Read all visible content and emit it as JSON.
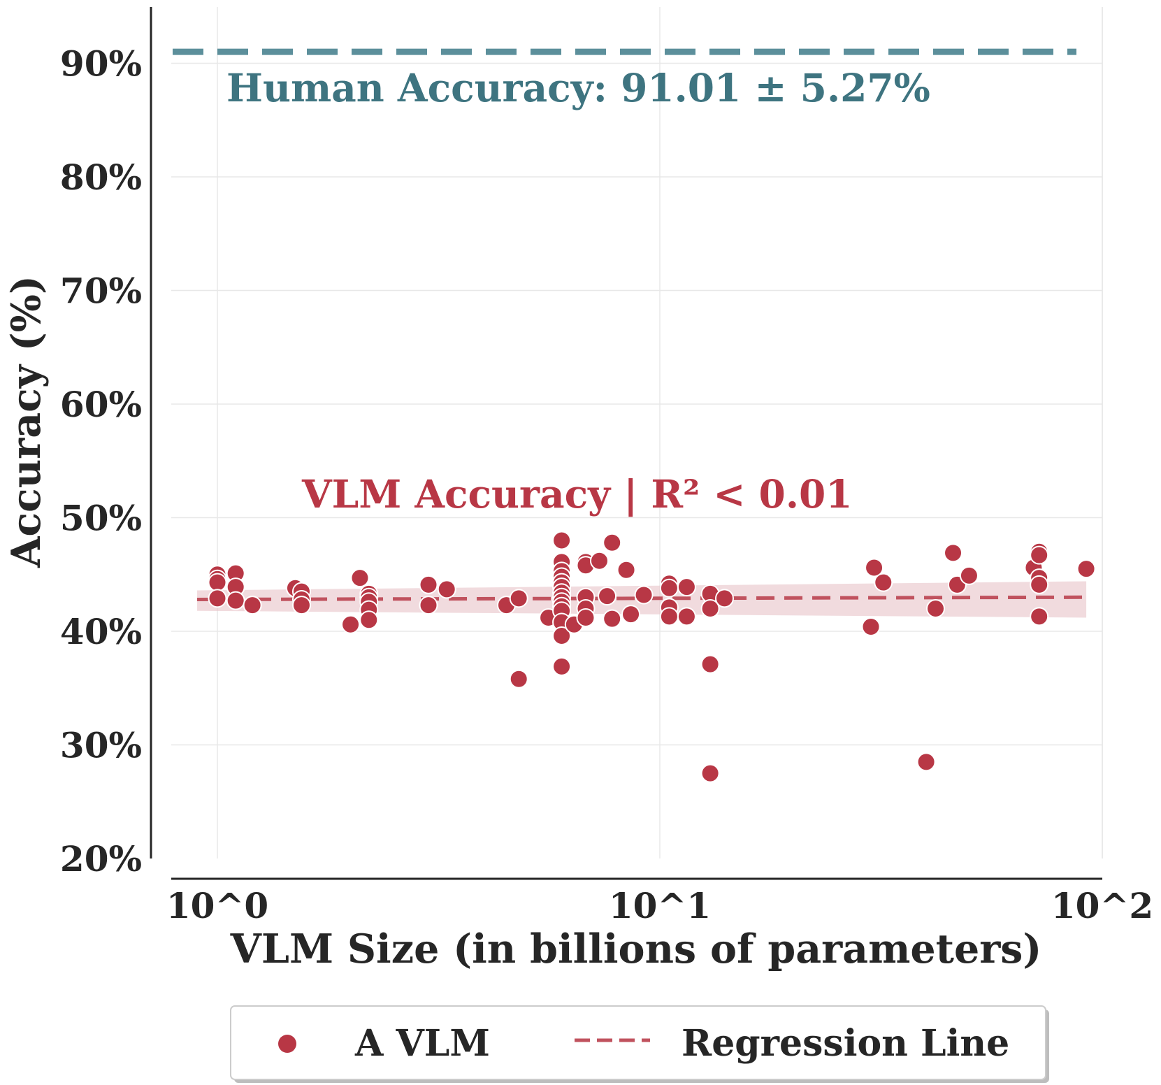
{
  "chart_data": {
    "type": "scatter",
    "title": "",
    "xlabel": "VLM Size (in billions of parameters)",
    "ylabel": "Accuracy (%)",
    "xscale": "log",
    "xlim": [
      0.88,
      100
    ],
    "ylim": [
      20,
      95
    ],
    "grid": true,
    "x_ticks": [
      1,
      10,
      100
    ],
    "x_tick_labels": [
      "10^0",
      "10^1",
      "10^2"
    ],
    "y_ticks": [
      20,
      30,
      40,
      50,
      60,
      70,
      80,
      90
    ],
    "y_tick_labels": [
      "20%",
      "30%",
      "40%",
      "50%",
      "60%",
      "70%",
      "80%",
      "90%"
    ],
    "human_accuracy": {
      "value": 91.01,
      "std": 5.27,
      "label": "Human Accuracy: 91.01 ± 5.27%",
      "color": "#5c8f9b",
      "text_color": "#3e7480"
    },
    "vlm_annotation": {
      "label": "VLM Accuracy | R² < 0.01",
      "color": "#b83745"
    },
    "regression": {
      "x_range": [
        0.9,
        92
      ],
      "y_start": 42.8,
      "y_end": 43.0,
      "ci_low_start": 41.8,
      "ci_high_start": 43.6,
      "ci_low_end": 41.2,
      "ci_high_end": 44.4,
      "color": "#c0525e",
      "band_color": "#e8c3c8"
    },
    "series": [
      {
        "name": "A VLM",
        "color": "#b83745",
        "points": [
          [
            1.0,
            45.0
          ],
          [
            1.0,
            44.6
          ],
          [
            1.0,
            44.3
          ],
          [
            1.0,
            42.9
          ],
          [
            1.1,
            45.1
          ],
          [
            1.1,
            43.9
          ],
          [
            1.1,
            42.7
          ],
          [
            1.2,
            42.3
          ],
          [
            1.5,
            43.8
          ],
          [
            1.55,
            43.5
          ],
          [
            1.55,
            42.8
          ],
          [
            1.55,
            42.3
          ],
          [
            2.0,
            40.6
          ],
          [
            2.1,
            44.7
          ],
          [
            2.2,
            43.3
          ],
          [
            2.2,
            43.0
          ],
          [
            2.2,
            42.6
          ],
          [
            2.2,
            41.9
          ],
          [
            2.2,
            41.0
          ],
          [
            3.0,
            44.1
          ],
          [
            3.0,
            42.3
          ],
          [
            3.3,
            43.7
          ],
          [
            4.5,
            42.3
          ],
          [
            4.8,
            35.8
          ],
          [
            4.8,
            42.9
          ],
          [
            5.6,
            41.2
          ],
          [
            6.0,
            48.0
          ],
          [
            6.0,
            46.1
          ],
          [
            6.0,
            45.3
          ],
          [
            6.0,
            44.8
          ],
          [
            6.0,
            44.3
          ],
          [
            6.0,
            43.9
          ],
          [
            6.0,
            43.4
          ],
          [
            6.0,
            43.0
          ],
          [
            6.0,
            42.6
          ],
          [
            6.0,
            42.2
          ],
          [
            6.0,
            41.8
          ],
          [
            6.0,
            40.8
          ],
          [
            6.0,
            39.6
          ],
          [
            6.0,
            36.9
          ],
          [
            6.4,
            40.6
          ],
          [
            6.8,
            46.1
          ],
          [
            6.8,
            45.8
          ],
          [
            6.8,
            43.0
          ],
          [
            6.8,
            42.0
          ],
          [
            6.8,
            41.2
          ],
          [
            7.3,
            46.2
          ],
          [
            7.6,
            43.1
          ],
          [
            7.8,
            47.8
          ],
          [
            7.8,
            41.1
          ],
          [
            8.4,
            45.4
          ],
          [
            8.6,
            41.5
          ],
          [
            9.2,
            43.2
          ],
          [
            10.5,
            44.2
          ],
          [
            10.5,
            43.8
          ],
          [
            10.5,
            42.1
          ],
          [
            10.5,
            41.3
          ],
          [
            11.5,
            43.9
          ],
          [
            11.5,
            41.3
          ],
          [
            13.0,
            43.3
          ],
          [
            13.0,
            42.0
          ],
          [
            13.0,
            37.1
          ],
          [
            13.0,
            27.5
          ],
          [
            14.0,
            42.9
          ],
          [
            30.0,
            40.4
          ],
          [
            30.5,
            45.6
          ],
          [
            32.0,
            44.3
          ],
          [
            40.0,
            28.5
          ],
          [
            42.0,
            42.0
          ],
          [
            46.0,
            46.9
          ],
          [
            47.0,
            44.1
          ],
          [
            50.0,
            44.9
          ],
          [
            70.0,
            45.6
          ],
          [
            72.0,
            47.0
          ],
          [
            72.0,
            46.7
          ],
          [
            72.0,
            44.7
          ],
          [
            72.0,
            44.1
          ],
          [
            72.0,
            41.3
          ],
          [
            92.0,
            45.5
          ]
        ]
      }
    ],
    "legend": {
      "placement": "bottom-center",
      "entries": [
        {
          "label": "A VLM",
          "kind": "marker",
          "color": "#b83745"
        },
        {
          "label": "Regression Line",
          "kind": "dashed-line",
          "color": "#c0525e"
        }
      ]
    }
  }
}
